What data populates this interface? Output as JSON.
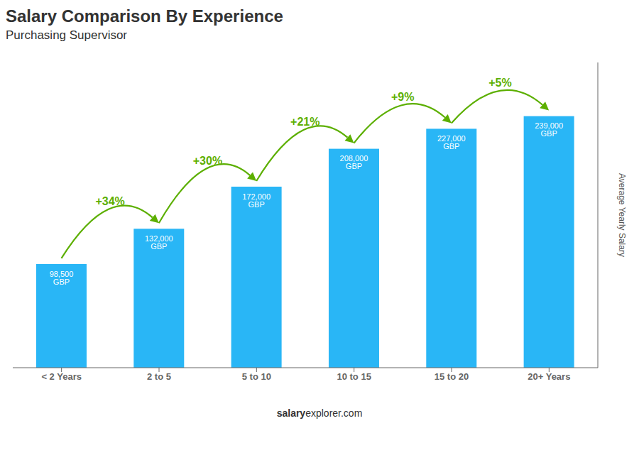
{
  "chart_data": {
    "type": "bar",
    "title": "Salary Comparison By Experience",
    "subtitle": "Purchasing Supervisor",
    "y_label": "Average Yearly Salary",
    "categories": [
      "< 2 Years",
      "2 to 5",
      "5 to 10",
      "10 to 15",
      "15 to 20",
      "20+ Years"
    ],
    "values": [
      98500,
      132000,
      172000,
      208000,
      227000,
      239000
    ],
    "value_labels": [
      "98,500 GBP",
      "132,000 GBP",
      "172,000 GBP",
      "208,000 GBP",
      "227,000 GBP",
      "239,000 GBP"
    ],
    "data_labels": true,
    "color": "#29B6F6",
    "ylim": [
      0,
      290000
    ],
    "tick_labels": "x",
    "grid": false,
    "annotations": [
      {
        "text": "+34%",
        "from": "< 2 Years",
        "to": "2 to 5",
        "color": "#5CAF00"
      },
      {
        "text": "+30%",
        "from": "2 to 5",
        "to": "5 to 10",
        "color": "#5CAF00"
      },
      {
        "text": "+21%",
        "from": "5 to 10",
        "to": "10 to 15",
        "color": "#5CAF00"
      },
      {
        "text": "+9%",
        "from": "10 to 15",
        "to": "15 to 20",
        "color": "#5CAF00"
      },
      {
        "text": "+5%",
        "from": "15 to 20",
        "to": "20+ Years",
        "color": "#5CAF00"
      }
    ],
    "footer": [
      "salary",
      "explorer.com"
    ]
  }
}
